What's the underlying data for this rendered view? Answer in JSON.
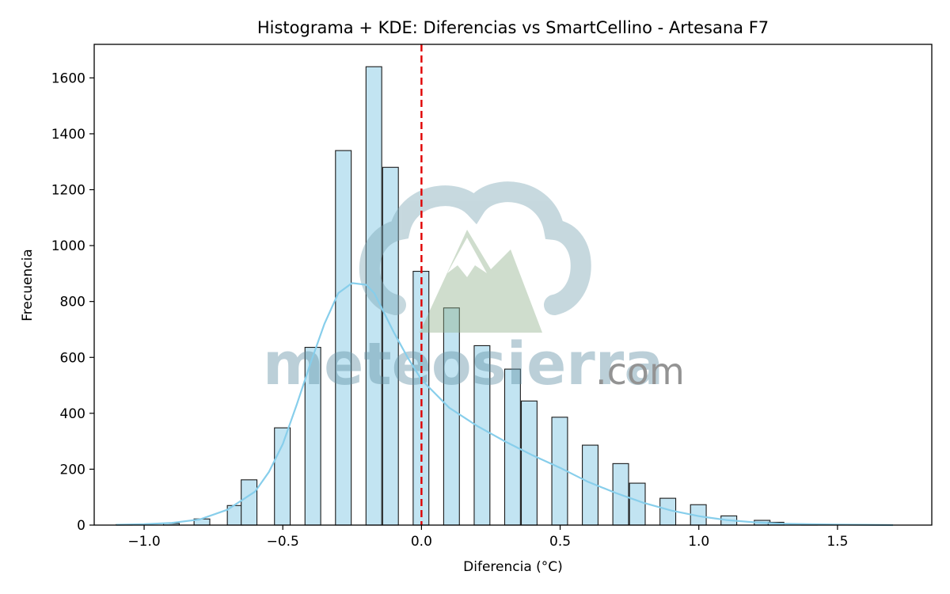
{
  "chart_data": {
    "type": "bar",
    "title": "Histograma + KDE: Diferencias vs SmartCellino - Artesana F7",
    "xlabel": "Diferencia (°C)",
    "ylabel": "Frecuencia",
    "xlim": [
      -1.18,
      1.84
    ],
    "ylim": [
      0,
      1720
    ],
    "xticks": [
      -1.0,
      -0.5,
      0.0,
      0.5,
      1.0,
      1.5
    ],
    "xtick_labels": [
      "−1.0",
      "−0.5",
      "0.0",
      "0.5",
      "1.0",
      "1.5"
    ],
    "yticks": [
      0,
      200,
      400,
      600,
      800,
      1000,
      1200,
      1400,
      1600
    ],
    "ytick_labels": [
      "0",
      "200",
      "400",
      "600",
      "800",
      "1000",
      "1200",
      "1400",
      "1600"
    ],
    "bin_width": 0.0567,
    "bar_color": "#c2e4f2",
    "bar_edge_color": "#1a1a1a",
    "bins": [
      {
        "x0": -1.1,
        "count": 2
      },
      {
        "x0": -0.93,
        "count": 6
      },
      {
        "x0": -0.82,
        "count": 22
      },
      {
        "x0": -0.7,
        "count": 70
      },
      {
        "x0": -0.65,
        "count": 162
      },
      {
        "x0": -0.53,
        "count": 348
      },
      {
        "x0": -0.42,
        "count": 636
      },
      {
        "x0": -0.31,
        "count": 1340
      },
      {
        "x0": -0.2,
        "count": 1640
      },
      {
        "x0": -0.14,
        "count": 1280
      },
      {
        "x0": -0.03,
        "count": 908
      },
      {
        "x0": 0.08,
        "count": 777
      },
      {
        "x0": 0.19,
        "count": 642
      },
      {
        "x0": 0.3,
        "count": 558
      },
      {
        "x0": 0.36,
        "count": 444
      },
      {
        "x0": 0.47,
        "count": 386
      },
      {
        "x0": 0.58,
        "count": 286
      },
      {
        "x0": 0.69,
        "count": 220
      },
      {
        "x0": 0.75,
        "count": 150
      },
      {
        "x0": 0.86,
        "count": 96
      },
      {
        "x0": 0.97,
        "count": 73
      },
      {
        "x0": 1.08,
        "count": 33
      },
      {
        "x0": 1.2,
        "count": 17
      },
      {
        "x0": 1.25,
        "count": 10
      },
      {
        "x0": 1.37,
        "count": 3
      }
    ],
    "kde": {
      "color": "#87ceeb",
      "x": [
        -1.1,
        -1.0,
        -0.9,
        -0.8,
        -0.7,
        -0.6,
        -0.55,
        -0.5,
        -0.45,
        -0.4,
        -0.35,
        -0.3,
        -0.25,
        -0.2,
        -0.17,
        -0.15,
        -0.1,
        -0.05,
        0.0,
        0.05,
        0.1,
        0.2,
        0.3,
        0.4,
        0.5,
        0.6,
        0.7,
        0.8,
        0.9,
        1.0,
        1.1,
        1.2,
        1.3,
        1.4,
        1.5,
        1.6,
        1.7
      ],
      "y": [
        1,
        3,
        8,
        20,
        55,
        120,
        190,
        290,
        430,
        580,
        720,
        830,
        866,
        860,
        830,
        790,
        690,
        600,
        520,
        470,
        420,
        355,
        300,
        250,
        205,
        155,
        115,
        80,
        52,
        32,
        18,
        10,
        5,
        3,
        2,
        1,
        0
      ]
    },
    "vline": {
      "x": 0.0,
      "color": "#e00000",
      "style": "dashed"
    },
    "watermark": {
      "brand": "meteosierra",
      "suffix": ".com"
    },
    "grid": false,
    "legend": "none"
  }
}
